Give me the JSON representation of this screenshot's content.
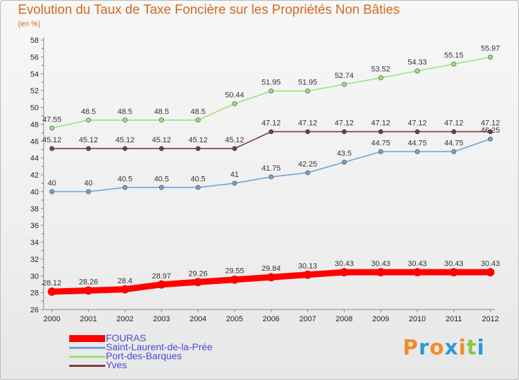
{
  "chart_data": {
    "type": "line",
    "title": "Evolution du Taux de Taxe Foncière sur les Propriétés Non Bâties",
    "subtitle": "(en %)",
    "categories": [
      "2000",
      "2001",
      "2002",
      "2003",
      "2004",
      "2005",
      "2006",
      "2007",
      "2008",
      "2009",
      "2010",
      "2011",
      "2012"
    ],
    "ylim": [
      26,
      58
    ],
    "yticks": [
      26,
      28,
      30,
      32,
      34,
      36,
      38,
      40,
      42,
      44,
      46,
      48,
      50,
      52,
      54,
      56,
      58
    ],
    "grid": false,
    "series": [
      {
        "name": "FOURAS",
        "color": "#ff0000",
        "values": [
          28.12,
          28.26,
          28.4,
          28.97,
          29.26,
          29.55,
          29.84,
          30.13,
          30.43,
          30.43,
          30.43,
          30.43,
          30.43
        ],
        "labels": [
          "28.12",
          "28.26",
          "28.4",
          "28.97",
          "29.26",
          "29.55",
          "29.84",
          "30.13",
          "30.43",
          "30.43",
          "30.43",
          "30.43",
          "30.43"
        ]
      },
      {
        "name": "Saint-Laurent-de-la-Prée",
        "color": "#6ea3d5",
        "values": [
          40,
          40,
          40.5,
          40.5,
          40.5,
          41,
          41.75,
          42.25,
          43.5,
          44.75,
          44.75,
          44.75,
          46.25
        ],
        "labels": [
          "40",
          "40",
          "40.5",
          "40.5",
          "40.5",
          "41",
          "41.75",
          "42.25",
          "43.5",
          "44.75",
          "44.75",
          "44.75",
          "46.25"
        ]
      },
      {
        "name": "Port-des-Barques",
        "color": "#99e27a",
        "values": [
          47.55,
          48.5,
          48.5,
          48.5,
          48.5,
          50.44,
          51.95,
          51.95,
          52.74,
          53.52,
          54.33,
          55.15,
          55.97
        ],
        "labels": [
          "47.55",
          "48.5",
          "48.5",
          "48.5",
          "48.5",
          "50.44",
          "51.95",
          "51.95",
          "52.74",
          "53.52",
          "54.33",
          "55.15",
          "55.97"
        ]
      },
      {
        "name": "Yves",
        "color": "#7a3b3b",
        "values": [
          45.12,
          45.12,
          45.12,
          45.12,
          45.12,
          45.12,
          47.12,
          47.12,
          47.12,
          47.12,
          47.12,
          47.12,
          47.12
        ],
        "labels": [
          "45.12",
          "45.12",
          "45.12",
          "45.12",
          "45.12",
          "45.12",
          "47.12",
          "47.12",
          "47.12",
          "47.12",
          "47.12",
          "47.12",
          "47.12"
        ]
      }
    ],
    "legend_position": "bottom-left"
  },
  "logo": {
    "letters": [
      "P",
      "r",
      "o",
      "x",
      "i",
      "t",
      "i"
    ],
    "colors": [
      "#f28c28",
      "#2b9bd6",
      "#f28c28",
      "#2b9bd6",
      "#f28c28",
      "#8cc63f",
      "#2b9bd6"
    ]
  }
}
